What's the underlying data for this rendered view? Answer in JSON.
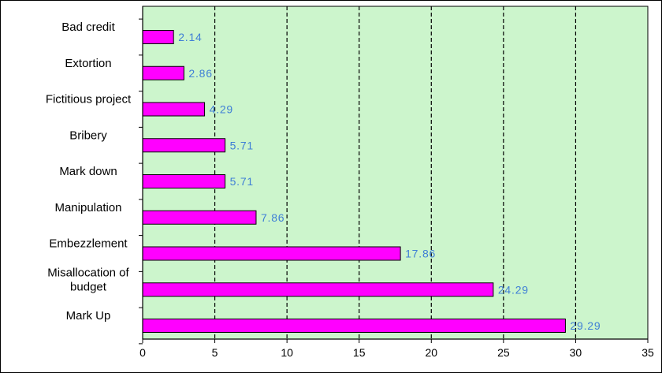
{
  "chart_data": {
    "type": "bar",
    "orientation": "horizontal",
    "categories": [
      "Bad credit",
      "Extortion",
      "Fictitious project",
      "Bribery",
      "Mark down",
      "Manipulation",
      "Embezzlement",
      "Misallocation of budget",
      "Mark Up"
    ],
    "category_display_lines": [
      [
        "Bad credit"
      ],
      [
        "Extortion"
      ],
      [
        "Fictitious project"
      ],
      [
        "Bribery"
      ],
      [
        "Mark down"
      ],
      [
        "Manipulation"
      ],
      [
        "Embezzlement"
      ],
      [
        "Misallocation of",
        "budget"
      ],
      [
        "Mark Up"
      ]
    ],
    "values": [
      2.14,
      2.86,
      4.29,
      5.71,
      5.71,
      7.86,
      17.86,
      24.29,
      29.29
    ],
    "value_labels": [
      "2.14",
      "2.86",
      "4.29",
      "5.71",
      "5.71",
      "7.86",
      "17.86",
      "24.29",
      "29.29"
    ],
    "title": "",
    "xlabel": "",
    "ylabel": "",
    "xlim": [
      0,
      35
    ],
    "x_ticks": [
      0,
      5,
      10,
      15,
      20,
      25,
      30,
      35
    ],
    "x_tick_labels": [
      "0",
      "5",
      "10",
      "15",
      "20",
      "25",
      "30",
      "35"
    ],
    "grid": "vertical dashed",
    "legend": "none",
    "colors": {
      "plot_background": "#ccf5cc",
      "bar_fill": "#ff00ff",
      "bar_stroke": "#000000",
      "value_label": "#3f7fd6",
      "grid": "#000000",
      "frame": "#000000"
    }
  }
}
